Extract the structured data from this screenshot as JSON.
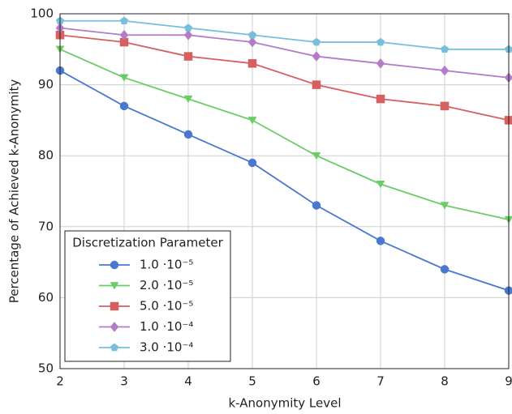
{
  "chart_data": {
    "type": "line",
    "xlabel": "k-Anonymity Level",
    "ylabel": "Percentage of Achieved k-Anonymity",
    "x": [
      2,
      3,
      4,
      5,
      6,
      7,
      8,
      9
    ],
    "xlim": [
      2,
      9
    ],
    "xticks": [
      2,
      3,
      4,
      5,
      6,
      7,
      8,
      9
    ],
    "ylim": [
      50,
      100
    ],
    "yticks": [
      50,
      60,
      70,
      80,
      90,
      100
    ],
    "grid": true,
    "legend_title": "Discretization Parameter",
    "legend_loc": "lower left",
    "series": [
      {
        "name": "1.0 ·10⁻⁵",
        "color": "#4878cf",
        "marker": "circle",
        "values": [
          92,
          87,
          83,
          79,
          73,
          68,
          64,
          61
        ]
      },
      {
        "name": "2.0 ·10⁻⁵",
        "color": "#6acc65",
        "marker": "triangle-down",
        "values": [
          95,
          91,
          88,
          85,
          80,
          76,
          73,
          71
        ]
      },
      {
        "name": "5.0 ·10⁻⁵",
        "color": "#d65f5f",
        "marker": "square",
        "values": [
          97,
          96,
          94,
          93,
          90,
          88,
          87,
          85
        ]
      },
      {
        "name": "1.0 ·10⁻⁴",
        "color": "#b47cc7",
        "marker": "diamond",
        "values": [
          98,
          97,
          97,
          96,
          94,
          93,
          92,
          91
        ]
      },
      {
        "name": "3.0 ·10⁻⁴",
        "color": "#77bedb",
        "marker": "pentagon",
        "values": [
          99,
          99,
          98,
          97,
          96,
          96,
          95,
          95
        ]
      }
    ]
  }
}
